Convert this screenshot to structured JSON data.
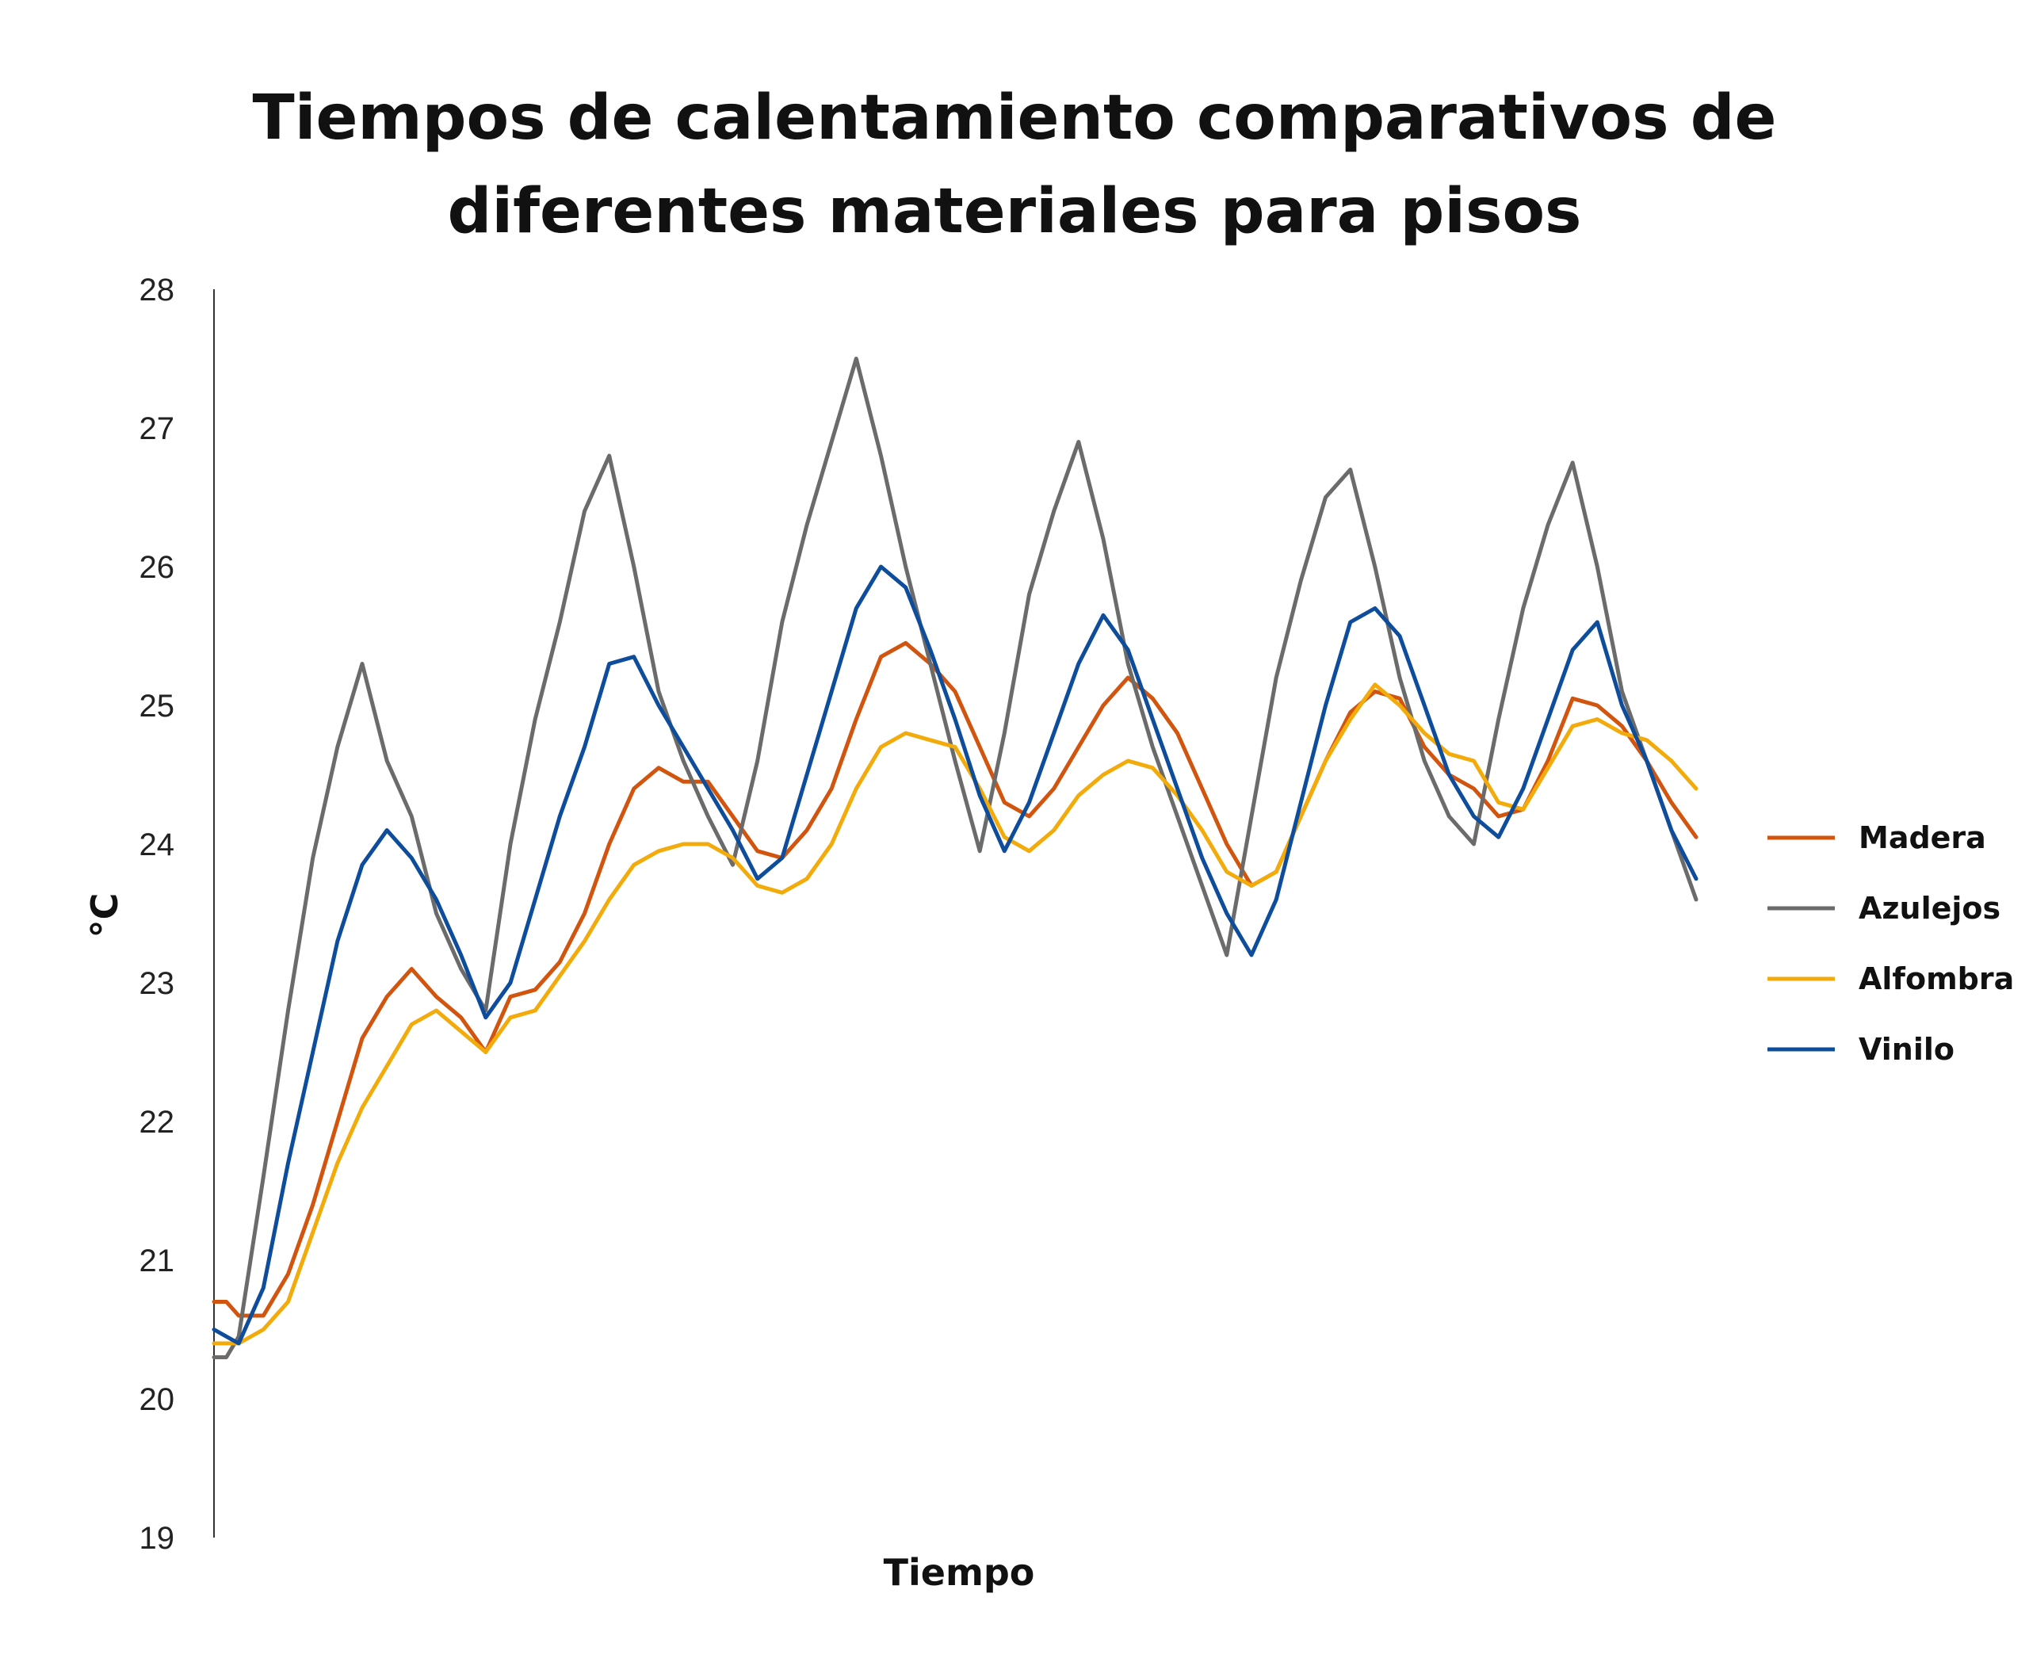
{
  "chart_data": {
    "type": "line",
    "title": "Tiempos de calentamiento comparativos de\ndiferentes materiales para pisos",
    "xlabel": "Tiempo",
    "ylabel": "°C",
    "ylim": [
      19,
      28
    ],
    "yticks": [
      "19",
      "20",
      "21",
      "22",
      "23",
      "24",
      "25",
      "26",
      "27",
      "28"
    ],
    "grid": false,
    "legend_position": "right",
    "x": [
      0,
      0.25,
      0.5,
      1,
      1.5,
      2,
      2.5,
      3,
      3.5,
      4,
      4.5,
      5,
      5.5,
      6,
      6.5,
      7,
      7.5,
      8,
      8.5,
      9,
      9.5,
      10,
      10.5,
      11,
      11.5,
      12,
      12.5,
      13,
      13.5,
      14,
      14.5,
      15,
      15.5,
      16,
      16.5,
      17,
      17.5,
      18,
      18.5,
      19,
      19.5,
      20,
      20.5,
      21,
      21.5,
      22,
      22.5,
      23,
      23.5,
      24,
      24.5,
      25,
      25.5,
      26,
      26.5,
      27,
      27.5,
      28,
      28.5,
      29,
      29.5,
      30
    ],
    "series": [
      {
        "name": "Madera",
        "color": "#d2550f",
        "values": [
          20.7,
          20.7,
          20.6,
          20.6,
          20.9,
          21.4,
          22.0,
          22.6,
          22.9,
          23.1,
          22.9,
          22.75,
          22.5,
          22.9,
          22.95,
          23.15,
          23.5,
          24.0,
          24.4,
          24.55,
          24.45,
          24.45,
          24.2,
          23.95,
          23.9,
          24.1,
          24.4,
          24.9,
          25.35,
          25.45,
          25.3,
          25.1,
          24.7,
          24.3,
          24.2,
          24.4,
          24.7,
          25.0,
          25.2,
          25.05,
          24.8,
          24.4,
          24.0,
          23.7,
          23.8,
          24.2,
          24.6,
          24.95,
          25.1,
          25.05,
          24.7,
          24.5,
          24.4,
          24.2,
          24.25,
          24.6,
          25.05,
          25.0,
          24.85,
          24.6,
          24.3,
          24.05
        ]
      },
      {
        "name": "Azulejos",
        "color": "#6b6b6b",
        "values": [
          20.3,
          20.3,
          20.45,
          21.6,
          22.8,
          23.9,
          24.7,
          25.3,
          24.6,
          24.2,
          23.5,
          23.1,
          22.8,
          24.0,
          24.9,
          25.6,
          26.4,
          26.8,
          26.0,
          25.1,
          24.6,
          24.2,
          23.85,
          24.6,
          25.6,
          26.3,
          26.9,
          27.5,
          26.8,
          26.0,
          25.3,
          24.6,
          23.95,
          24.8,
          25.8,
          26.4,
          26.9,
          26.2,
          25.3,
          24.7,
          24.2,
          23.7,
          23.2,
          24.2,
          25.2,
          25.9,
          26.5,
          26.7,
          26.0,
          25.2,
          24.6,
          24.2,
          24.0,
          24.9,
          25.7,
          26.3,
          26.75,
          26.0,
          25.1,
          24.6,
          24.1,
          23.6
        ]
      },
      {
        "name": "Alfombra",
        "color": "#f2ab0a",
        "values": [
          20.4,
          20.4,
          20.4,
          20.5,
          20.7,
          21.2,
          21.7,
          22.1,
          22.4,
          22.7,
          22.8,
          22.65,
          22.5,
          22.75,
          22.8,
          23.05,
          23.3,
          23.6,
          23.85,
          23.95,
          24.0,
          24.0,
          23.9,
          23.7,
          23.65,
          23.75,
          24.0,
          24.4,
          24.7,
          24.8,
          24.75,
          24.7,
          24.4,
          24.05,
          23.95,
          24.1,
          24.35,
          24.5,
          24.6,
          24.55,
          24.35,
          24.1,
          23.8,
          23.7,
          23.8,
          24.2,
          24.6,
          24.9,
          25.15,
          25.0,
          24.8,
          24.65,
          24.6,
          24.3,
          24.25,
          24.55,
          24.85,
          24.9,
          24.8,
          24.75,
          24.6,
          24.4
        ]
      },
      {
        "name": "Vinilo",
        "color": "#0e4c9c",
        "values": [
          20.5,
          20.45,
          20.4,
          20.8,
          21.7,
          22.5,
          23.3,
          23.85,
          24.1,
          23.9,
          23.6,
          23.2,
          22.75,
          23.0,
          23.6,
          24.2,
          24.7,
          25.3,
          25.35,
          25.0,
          24.7,
          24.4,
          24.1,
          23.75,
          23.9,
          24.5,
          25.1,
          25.7,
          26.0,
          25.85,
          25.4,
          24.9,
          24.35,
          23.95,
          24.3,
          24.8,
          25.3,
          25.65,
          25.4,
          24.9,
          24.4,
          23.9,
          23.5,
          23.2,
          23.6,
          24.3,
          25.0,
          25.6,
          25.7,
          25.5,
          25.0,
          24.5,
          24.2,
          24.05,
          24.4,
          24.9,
          25.4,
          25.6,
          25.0,
          24.6,
          24.1,
          23.75
        ]
      }
    ]
  }
}
